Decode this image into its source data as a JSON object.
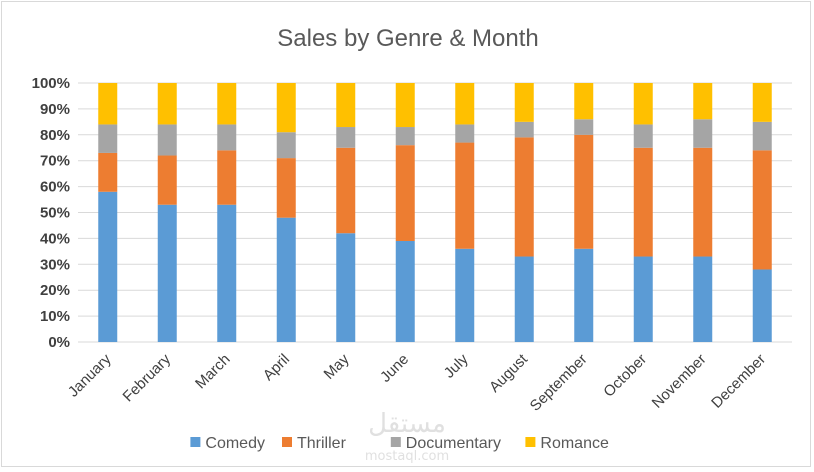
{
  "chart_data": {
    "type": "bar",
    "stacked": true,
    "percent_stacked": true,
    "title": "Sales by Genre & Month",
    "xlabel": "",
    "ylabel": "",
    "ylim": [
      0,
      100
    ],
    "y_ticks": [
      "0%",
      "10%",
      "20%",
      "30%",
      "40%",
      "50%",
      "60%",
      "70%",
      "80%",
      "90%",
      "100%"
    ],
    "grid": true,
    "legend": "bottom",
    "categories": [
      "January",
      "February",
      "March",
      "April",
      "May",
      "June",
      "July",
      "August",
      "September",
      "October",
      "November",
      "December"
    ],
    "series": [
      {
        "name": "Comedy",
        "color": "#5b9bd5",
        "values": [
          58,
          53,
          53,
          48,
          42,
          39,
          36,
          33,
          36,
          33,
          33,
          28
        ]
      },
      {
        "name": "Thriller",
        "color": "#ed7d31",
        "values": [
          15,
          19,
          21,
          23,
          33,
          37,
          41,
          46,
          44,
          42,
          42,
          46
        ]
      },
      {
        "name": "Documentary",
        "color": "#a5a5a5",
        "values": [
          11,
          12,
          10,
          10,
          8,
          7,
          7,
          6,
          6,
          9,
          11,
          11
        ]
      },
      {
        "name": "Romance",
        "color": "#ffc000",
        "values": [
          16,
          16,
          16,
          19,
          17,
          17,
          16,
          15,
          14,
          16,
          14,
          15
        ]
      }
    ]
  },
  "watermark": {
    "text_ar": "مستقل",
    "text_en": "mostaql.com"
  }
}
